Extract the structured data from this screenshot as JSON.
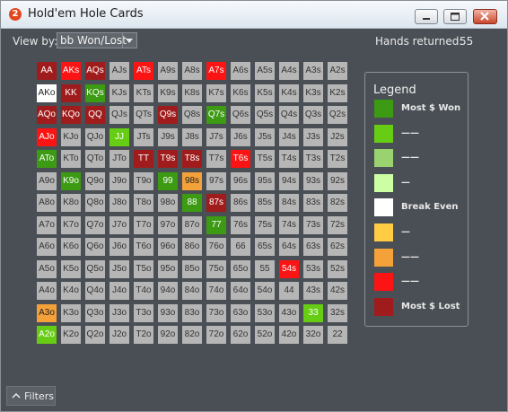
{
  "window": {
    "app_icon_text": "2",
    "title": "Hold'em Hole Cards"
  },
  "toolbar": {
    "view_by_label": "View by:",
    "view_by_value": "bb Won/Lost",
    "hands_returned_label": "Hands returned:",
    "hands_returned_value": "55"
  },
  "colors": {
    "grey": "#b6b6b6",
    "dark_green": "#3c9a13",
    "green": "#66cc14",
    "light_green": "#9ad270",
    "pale_green": "#ccffa4",
    "white": "#ffffff",
    "yellow": "#ffcc44",
    "orange": "#f4a13a",
    "red": "#fc1313",
    "dark_red": "#a01c1c"
  },
  "grid": {
    "rows": [
      [
        "AA",
        "AKs",
        "AQs",
        "AJs",
        "ATs",
        "A9s",
        "A8s",
        "A7s",
        "A6s",
        "A5s",
        "A4s",
        "A3s",
        "A2s"
      ],
      [
        "AKo",
        "KK",
        "KQs",
        "KJs",
        "KTs",
        "K9s",
        "K8s",
        "K7s",
        "K6s",
        "K5s",
        "K4s",
        "K3s",
        "K2s"
      ],
      [
        "AQo",
        "KQo",
        "QQ",
        "QJs",
        "QTs",
        "Q9s",
        "Q8s",
        "Q7s",
        "Q6s",
        "Q5s",
        "Q4s",
        "Q3s",
        "Q2s"
      ],
      [
        "AJo",
        "KJo",
        "QJo",
        "JJ",
        "JTs",
        "J9s",
        "J8s",
        "J7s",
        "J6s",
        "J5s",
        "J4s",
        "J3s",
        "J2s"
      ],
      [
        "ATo",
        "KTo",
        "QTo",
        "JTo",
        "TT",
        "T9s",
        "T8s",
        "T7s",
        "T6s",
        "T5s",
        "T4s",
        "T3s",
        "T2s"
      ],
      [
        "A9o",
        "K9o",
        "Q9o",
        "J9o",
        "T9o",
        "99",
        "98s",
        "97s",
        "96s",
        "95s",
        "94s",
        "93s",
        "92s"
      ],
      [
        "A8o",
        "K8o",
        "Q8o",
        "J8o",
        "T8o",
        "98o",
        "88",
        "87s",
        "86s",
        "85s",
        "84s",
        "83s",
        "82s"
      ],
      [
        "A7o",
        "K7o",
        "Q7o",
        "J7o",
        "T7o",
        "97o",
        "87o",
        "77",
        "76s",
        "75s",
        "74s",
        "73s",
        "72s"
      ],
      [
        "A6o",
        "K6o",
        "Q6o",
        "J6o",
        "T6o",
        "96o",
        "86o",
        "76o",
        "66",
        "65s",
        "64s",
        "63s",
        "62s"
      ],
      [
        "A5o",
        "K5o",
        "Q5o",
        "J5o",
        "T5o",
        "95o",
        "85o",
        "75o",
        "65o",
        "55",
        "54s",
        "53s",
        "52s"
      ],
      [
        "A4o",
        "K4o",
        "Q4o",
        "J4o",
        "T4o",
        "94o",
        "84o",
        "74o",
        "64o",
        "54o",
        "44",
        "43s",
        "42s"
      ],
      [
        "A3o",
        "K3o",
        "Q3o",
        "J3o",
        "T3o",
        "93o",
        "83o",
        "73o",
        "63o",
        "53o",
        "43o",
        "33",
        "32s"
      ],
      [
        "A2o",
        "K2o",
        "Q2o",
        "J2o",
        "T2o",
        "92o",
        "82o",
        "72o",
        "62o",
        "52o",
        "42o",
        "32o",
        "22"
      ]
    ],
    "highlights": {
      "AA": "dark_red",
      "AKs": "red",
      "AQs": "dark_red",
      "ATs": "red",
      "A7s": "red",
      "AKo": "white",
      "KK": "dark_red",
      "KQs": "dark_green",
      "AQo": "dark_red",
      "KQo": "dark_red",
      "QQ": "dark_red",
      "Q9s": "dark_red",
      "Q7s": "dark_green",
      "AJo": "red",
      "JJ": "green",
      "ATo": "dark_green",
      "TT": "dark_red",
      "T9s": "dark_red",
      "T8s": "dark_red",
      "T6s": "red",
      "K9o": "dark_green",
      "99": "dark_green",
      "98s": "orange",
      "88": "dark_green",
      "87s": "dark_red",
      "77": "dark_green",
      "54s": "red",
      "A3o": "orange",
      "33": "green",
      "A2o": "green"
    }
  },
  "legend": {
    "title": "Legend",
    "items": [
      {
        "color": "dark_green",
        "label": "Most $ Won"
      },
      {
        "color": "green",
        "label": "——"
      },
      {
        "color": "light_green",
        "label": "——"
      },
      {
        "color": "pale_green",
        "label": "—"
      },
      {
        "color": "white",
        "label": "Break Even"
      },
      {
        "color": "yellow",
        "label": "—"
      },
      {
        "color": "orange",
        "label": "——"
      },
      {
        "color": "red",
        "label": "——"
      },
      {
        "color": "dark_red",
        "label": "Most $ Lost"
      }
    ]
  },
  "footer": {
    "filters_label": "Filters"
  }
}
